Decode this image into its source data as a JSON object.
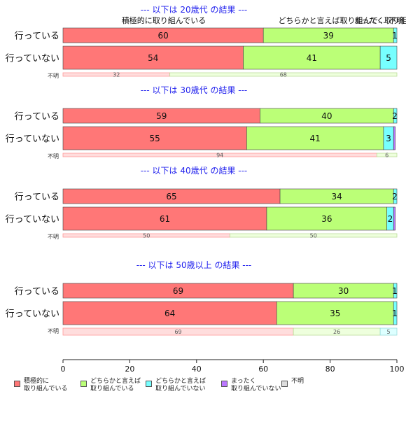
{
  "chart_data": {
    "type": "bar",
    "orientation": "horizontal",
    "stacked": true,
    "xlim": [
      0,
      100
    ],
    "xticks": [
      0,
      20,
      40,
      60,
      80,
      100
    ],
    "top_labels": {
      "first": "積極的に取り組んでいる",
      "second": "どちらかと言えば取り組んで...",
      "third": "まったく取り組...",
      "fourth": "不明"
    },
    "colors": {
      "c1": "#ff7777",
      "c2": "#bbff77",
      "c3": "#77ffff",
      "c4": "#bb77ff",
      "c5": "#dddddd"
    },
    "legend": [
      {
        "label": "積極的に\n取り組んでいる",
        "color": "#ff7777"
      },
      {
        "label": "どちらかと言えば\n取り組んでいる",
        "color": "#bbff77"
      },
      {
        "label": "どちらかと言えば\n取り組んでいない",
        "color": "#77ffff"
      },
      {
        "label": "まったく\n取り組んでいない",
        "color": "#bb77ff"
      },
      {
        "label": "不明",
        "color": "#dddddd"
      }
    ],
    "groups": [
      {
        "title": "--- 以下は 20歳代 の結果 ---",
        "rows": [
          {
            "label": "行っている",
            "values": [
              60,
              39,
              1,
              0,
              0
            ],
            "labels": [
              "60",
              "39",
              "1",
              "",
              ""
            ]
          },
          {
            "label": "行っていない",
            "values": [
              54,
              41,
              5,
              0,
              0
            ],
            "labels": [
              "54",
              "41",
              "5",
              "",
              ""
            ]
          }
        ],
        "unknown": {
          "label": "不明",
          "values": [
            32,
            68
          ],
          "labels": [
            "32",
            "68"
          ]
        }
      },
      {
        "title": "--- 以下は 30歳代 の結果 ---",
        "rows": [
          {
            "label": "行っている",
            "values": [
              59,
              40,
              2,
              0,
              0
            ],
            "labels": [
              "59",
              "40",
              "2",
              "",
              ""
            ]
          },
          {
            "label": "行っていない",
            "values": [
              55,
              41,
              3,
              0.5,
              0
            ],
            "labels": [
              "55",
              "41",
              "3",
              "",
              ""
            ]
          }
        ],
        "unknown": {
          "label": "不明",
          "values": [
            94,
            6
          ],
          "labels": [
            "94",
            "6"
          ]
        }
      },
      {
        "title": "--- 以下は 40歳代 の結果 ---",
        "rows": [
          {
            "label": "行っている",
            "values": [
              65,
              34,
              2,
              0,
              0
            ],
            "labels": [
              "65",
              "34",
              "2",
              "",
              ""
            ]
          },
          {
            "label": "行っていない",
            "values": [
              61,
              36,
              2,
              0.5,
              0
            ],
            "labels": [
              "61",
              "36",
              "2",
              "",
              ""
            ]
          }
        ],
        "unknown": {
          "label": "不明",
          "values": [
            50,
            50
          ],
          "labels": [
            "50",
            "50"
          ]
        }
      },
      {
        "title": "--- 以下は 50歳以上 の結果 ---",
        "rows": [
          {
            "label": "行っている",
            "values": [
              69,
              30,
              1,
              0,
              0
            ],
            "labels": [
              "69",
              "30",
              "1",
              "",
              ""
            ]
          },
          {
            "label": "行っていない",
            "values": [
              64,
              35,
              1,
              0,
              0
            ],
            "labels": [
              "64",
              "35",
              "1",
              "",
              ""
            ]
          }
        ],
        "unknown": {
          "label": "不明",
          "values": [
            69,
            26,
            5
          ],
          "labels": [
            "69",
            "26",
            "5"
          ]
        }
      }
    ]
  }
}
